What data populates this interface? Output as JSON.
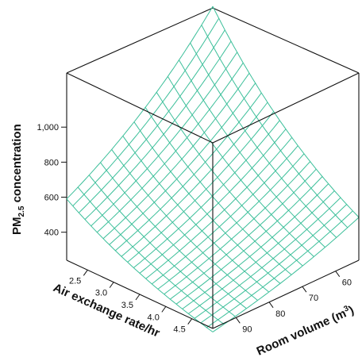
{
  "chart_data": {
    "type": "surface3d",
    "title": "",
    "zlabel": {
      "main": "PM",
      "sub": "2.5",
      "rest": " concentration"
    },
    "xlabel": "Air exchange rate/hr",
    "ylabel": {
      "main": "Room volume (m",
      "sup": "3",
      "end": ")"
    },
    "x_ticks": [
      2.5,
      3.0,
      3.5,
      4.0,
      4.5
    ],
    "x_tick_labels": [
      "2.5",
      "3.0",
      "3.5",
      "4.0",
      "4.5"
    ],
    "y_ticks": [
      60,
      70,
      80,
      90
    ],
    "y_tick_labels": [
      "60",
      "70",
      "80",
      "90"
    ],
    "z_ticks": [
      400,
      600,
      800,
      1000
    ],
    "z_tick_labels": [
      "400",
      "600",
      "800",
      "1,000"
    ],
    "xlim": [
      2.1,
      4.9
    ],
    "ylim": [
      53,
      97
    ],
    "zlim": [
      240,
      1300
    ],
    "mesh_color": "#3cbf9a",
    "mesh_resolution": {
      "x_lines": 25,
      "y_lines": 14
    },
    "surface_samples": {
      "note_units": "PM2.5 concentration at corners",
      "points": [
        {
          "x": 2.1,
          "y": 53,
          "z": 1300
        },
        {
          "x": 2.1,
          "y": 97,
          "z": 590
        },
        {
          "x": 4.9,
          "y": 53,
          "z": 485
        },
        {
          "x": 4.9,
          "y": 97,
          "z": 240
        }
      ]
    }
  }
}
